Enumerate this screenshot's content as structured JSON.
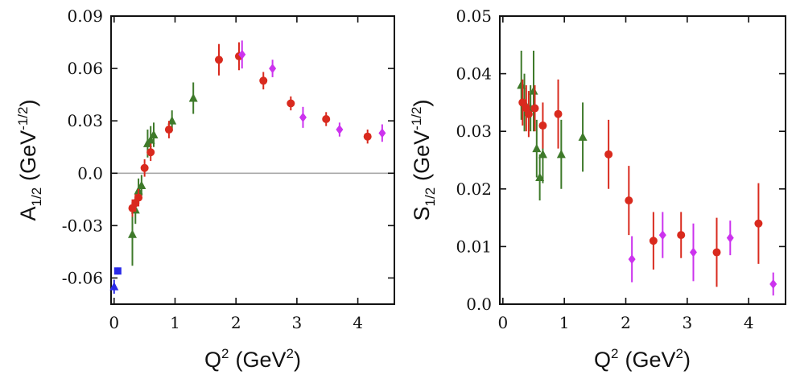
{
  "chart_data": [
    {
      "id": "left",
      "type": "scatter",
      "ylabel_main": "A",
      "ylabel_sub": "1/2",
      "ylabel_unit": "(GeV",
      "ylabel_unit_sup": "-1/2",
      "ylabel_close": ")",
      "xlabel_main": "Q",
      "xlabel_sup": "2",
      "xlabel_unit": "(GeV",
      "xlabel_unit_sup": "2",
      "xlabel_close": ")",
      "xlim": [
        -0.05,
        4.6
      ],
      "ylim": [
        -0.075,
        0.09
      ],
      "xticks": [
        0,
        1,
        2,
        3,
        4
      ],
      "xtick_labels": [
        "0",
        "1",
        "2",
        "3",
        "4"
      ],
      "yticks": [
        -0.06,
        -0.03,
        0.0,
        0.03,
        0.06,
        0.09
      ],
      "ytick_labels": [
        "-0.06",
        "-0.03",
        "0.0",
        "0.03",
        "0.06",
        "0.09"
      ],
      "zero_line": 0.0,
      "series": [
        {
          "name": "blue-triangle",
          "color": "#2a2ae8",
          "marker": "triangle",
          "points": [
            [
              0.0,
              -0.065,
              0.004
            ]
          ]
        },
        {
          "name": "blue-square",
          "color": "#2a2ae8",
          "marker": "square",
          "points": [
            [
              0.06,
              -0.056,
              0.002
            ]
          ]
        },
        {
          "name": "green",
          "color": "#3e7a2a",
          "marker": "triangle",
          "points": [
            [
              0.3,
              -0.035,
              0.018
            ],
            [
              0.35,
              -0.021,
              0.008
            ],
            [
              0.4,
              -0.01,
              0.007
            ],
            [
              0.45,
              -0.007,
              0.006
            ],
            [
              0.55,
              0.017,
              0.008
            ],
            [
              0.6,
              0.019,
              0.008
            ],
            [
              0.65,
              0.022,
              0.007
            ],
            [
              0.95,
              0.03,
              0.006
            ],
            [
              1.3,
              0.043,
              0.009
            ]
          ]
        },
        {
          "name": "red",
          "color": "#d92a1e",
          "marker": "circle",
          "points": [
            [
              0.3,
              -0.02,
              0.005
            ],
            [
              0.35,
              -0.017,
              0.005
            ],
            [
              0.4,
              -0.014,
              0.005
            ],
            [
              0.5,
              0.003,
              0.005
            ],
            [
              0.6,
              0.012,
              0.005
            ],
            [
              0.9,
              0.025,
              0.005
            ],
            [
              1.72,
              0.065,
              0.009
            ],
            [
              2.05,
              0.067,
              0.008
            ],
            [
              2.45,
              0.053,
              0.005
            ],
            [
              2.9,
              0.04,
              0.004
            ],
            [
              3.48,
              0.031,
              0.004
            ],
            [
              4.16,
              0.021,
              0.004
            ]
          ]
        },
        {
          "name": "magenta",
          "color": "#cc33ee",
          "marker": "diamond",
          "points": [
            [
              2.1,
              0.068,
              0.008
            ],
            [
              2.6,
              0.06,
              0.005
            ],
            [
              3.1,
              0.032,
              0.006
            ],
            [
              3.7,
              0.025,
              0.004
            ],
            [
              4.4,
              0.023,
              0.005
            ]
          ]
        }
      ]
    },
    {
      "id": "right",
      "type": "scatter",
      "ylabel_main": "S",
      "ylabel_sub": "1/2",
      "ylabel_unit": "(GeV",
      "ylabel_unit_sup": "-1/2",
      "ylabel_close": ")",
      "xlabel_main": "Q",
      "xlabel_sup": "2",
      "xlabel_unit": "(GeV",
      "xlabel_unit_sup": "2",
      "xlabel_close": ")",
      "xlim": [
        -0.05,
        4.6
      ],
      "ylim": [
        0.0,
        0.05
      ],
      "xticks": [
        0,
        1,
        2,
        3,
        4
      ],
      "xtick_labels": [
        "0",
        "1",
        "2",
        "3",
        "4"
      ],
      "yticks": [
        0.0,
        0.01,
        0.02,
        0.03,
        0.04,
        0.05
      ],
      "ytick_labels": [
        "0.0",
        "0.01",
        "0.02",
        "0.03",
        "0.04",
        "0.05"
      ],
      "series": [
        {
          "name": "green",
          "color": "#3e7a2a",
          "marker": "triangle",
          "points": [
            [
              0.3,
              0.038,
              0.006
            ],
            [
              0.35,
              0.035,
              0.005
            ],
            [
              0.45,
              0.034,
              0.004
            ],
            [
              0.5,
              0.037,
              0.007
            ],
            [
              0.55,
              0.027,
              0.005
            ],
            [
              0.6,
              0.022,
              0.004
            ],
            [
              0.65,
              0.026,
              0.005
            ],
            [
              0.95,
              0.026,
              0.006
            ],
            [
              1.3,
              0.029,
              0.006
            ]
          ]
        },
        {
          "name": "red",
          "color": "#d92a1e",
          "marker": "circle",
          "points": [
            [
              0.32,
              0.035,
              0.004
            ],
            [
              0.38,
              0.034,
              0.004
            ],
            [
              0.42,
              0.033,
              0.004
            ],
            [
              0.52,
              0.034,
              0.004
            ],
            [
              0.65,
              0.031,
              0.004
            ],
            [
              0.9,
              0.033,
              0.006
            ],
            [
              1.72,
              0.026,
              0.006
            ],
            [
              2.05,
              0.018,
              0.006
            ],
            [
              2.45,
              0.011,
              0.005
            ],
            [
              2.9,
              0.012,
              0.004
            ],
            [
              3.48,
              0.009,
              0.006
            ],
            [
              4.16,
              0.014,
              0.007
            ]
          ]
        },
        {
          "name": "magenta",
          "color": "#cc33ee",
          "marker": "diamond",
          "points": [
            [
              2.1,
              0.0078,
              0.004
            ],
            [
              2.6,
              0.012,
              0.004
            ],
            [
              3.1,
              0.009,
              0.005
            ],
            [
              3.7,
              0.0115,
              0.003
            ],
            [
              4.4,
              0.0035,
              0.002
            ]
          ]
        }
      ]
    }
  ]
}
